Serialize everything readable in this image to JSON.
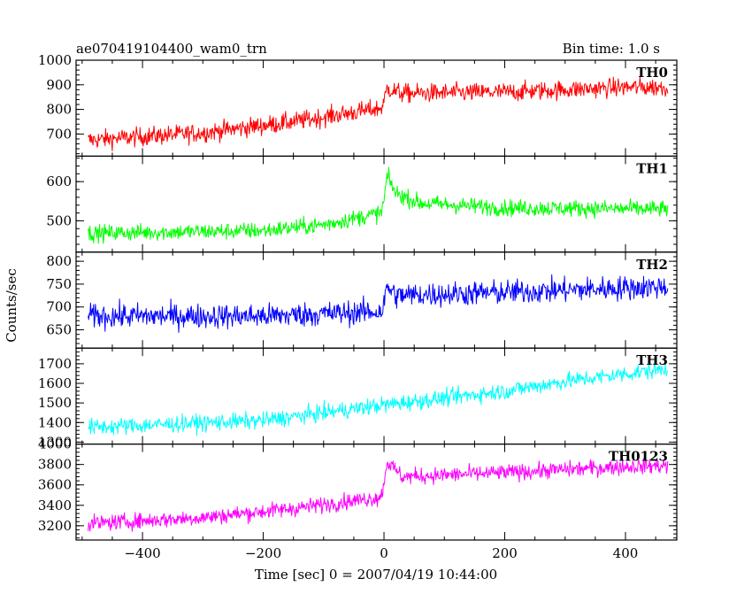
{
  "header": {
    "title": "ae070419104400_wam0_trn",
    "bin_time": "Bin time: 1.0 s"
  },
  "axes": {
    "xlabel": "Time [sec] 0 = 2007/04/19 10:44:00",
    "ylabel": "Counts/sec"
  },
  "chart_data": {
    "type": "line",
    "title": "ae070419104400_wam0_trn",
    "subtitle": "Bin time: 1.0 s",
    "xlabel": "Time [sec] 0 = 2007/04/19 10:44:00",
    "ylabel": "Counts/sec",
    "xlim": [
      -510,
      485
    ],
    "x_ticks": [
      -400,
      -200,
      0,
      200,
      400
    ],
    "x_tick_labels": [
      "−400",
      "−200",
      "0",
      "200",
      "400"
    ],
    "x_range": [
      -490,
      470
    ],
    "panels": [
      {
        "name": "TH0",
        "color": "#ff0000",
        "ylim": [
          610,
          1000
        ],
        "y_ticks": [
          700,
          800,
          900,
          1000
        ],
        "y_tick_labels": [
          "700",
          "800",
          "900",
          "1000"
        ],
        "anchors": [
          [
            -490,
            675
          ],
          [
            -300,
            705
          ],
          [
            -150,
            750
          ],
          [
            -5,
            805
          ],
          [
            0,
            830
          ],
          [
            5,
            885
          ],
          [
            30,
            865
          ],
          [
            200,
            870
          ],
          [
            400,
            890
          ],
          [
            470,
            890
          ]
        ],
        "noise": 27
      },
      {
        "name": "TH1",
        "color": "#00ff00",
        "ylim": [
          420,
          665
        ],
        "y_ticks": [
          500,
          600
        ],
        "y_tick_labels": [
          "500",
          "600"
        ],
        "anchors": [
          [
            -490,
            468
          ],
          [
            -200,
            475
          ],
          [
            -100,
            490
          ],
          [
            -5,
            520
          ],
          [
            0,
            550
          ],
          [
            5,
            615
          ],
          [
            20,
            570
          ],
          [
            60,
            545
          ],
          [
            200,
            533
          ],
          [
            470,
            530
          ]
        ],
        "noise": 15
      },
      {
        "name": "TH2",
        "color": "#0000ff",
        "ylim": [
          610,
          820
        ],
        "y_ticks": [
          650,
          700,
          750,
          800
        ],
        "y_tick_labels": [
          "650",
          "700",
          "750",
          "800"
        ],
        "anchors": [
          [
            -490,
            680
          ],
          [
            -200,
            680
          ],
          [
            -5,
            690
          ],
          [
            0,
            705
          ],
          [
            5,
            745
          ],
          [
            20,
            725
          ],
          [
            200,
            732
          ],
          [
            470,
            745
          ]
        ],
        "noise": 19
      },
      {
        "name": "TH3",
        "color": "#00ffff",
        "ylim": [
          1290,
          1780
        ],
        "y_ticks": [
          1300,
          1400,
          1500,
          1600,
          1700
        ],
        "y_tick_labels": [
          "1300",
          "1400",
          "1500",
          "1600",
          "1700"
        ],
        "anchors": [
          [
            -490,
            1375
          ],
          [
            -200,
            1410
          ],
          [
            -100,
            1450
          ],
          [
            0,
            1490
          ],
          [
            100,
            1525
          ],
          [
            200,
            1560
          ],
          [
            300,
            1610
          ],
          [
            470,
            1675
          ]
        ],
        "noise": 30
      },
      {
        "name": "TH0123",
        "color": "#ff00ff",
        "ylim": [
          3060,
          4000
        ],
        "y_ticks": [
          3200,
          3400,
          3600,
          3800,
          4000
        ],
        "y_tick_labels": [
          "3200",
          "3400",
          "3600",
          "3800",
          "4000"
        ],
        "anchors": [
          [
            -490,
            3220
          ],
          [
            -300,
            3280
          ],
          [
            -150,
            3370
          ],
          [
            -5,
            3480
          ],
          [
            0,
            3620
          ],
          [
            5,
            3830
          ],
          [
            30,
            3680
          ],
          [
            200,
            3720
          ],
          [
            400,
            3780
          ],
          [
            470,
            3790
          ]
        ],
        "noise": 55
      }
    ]
  }
}
